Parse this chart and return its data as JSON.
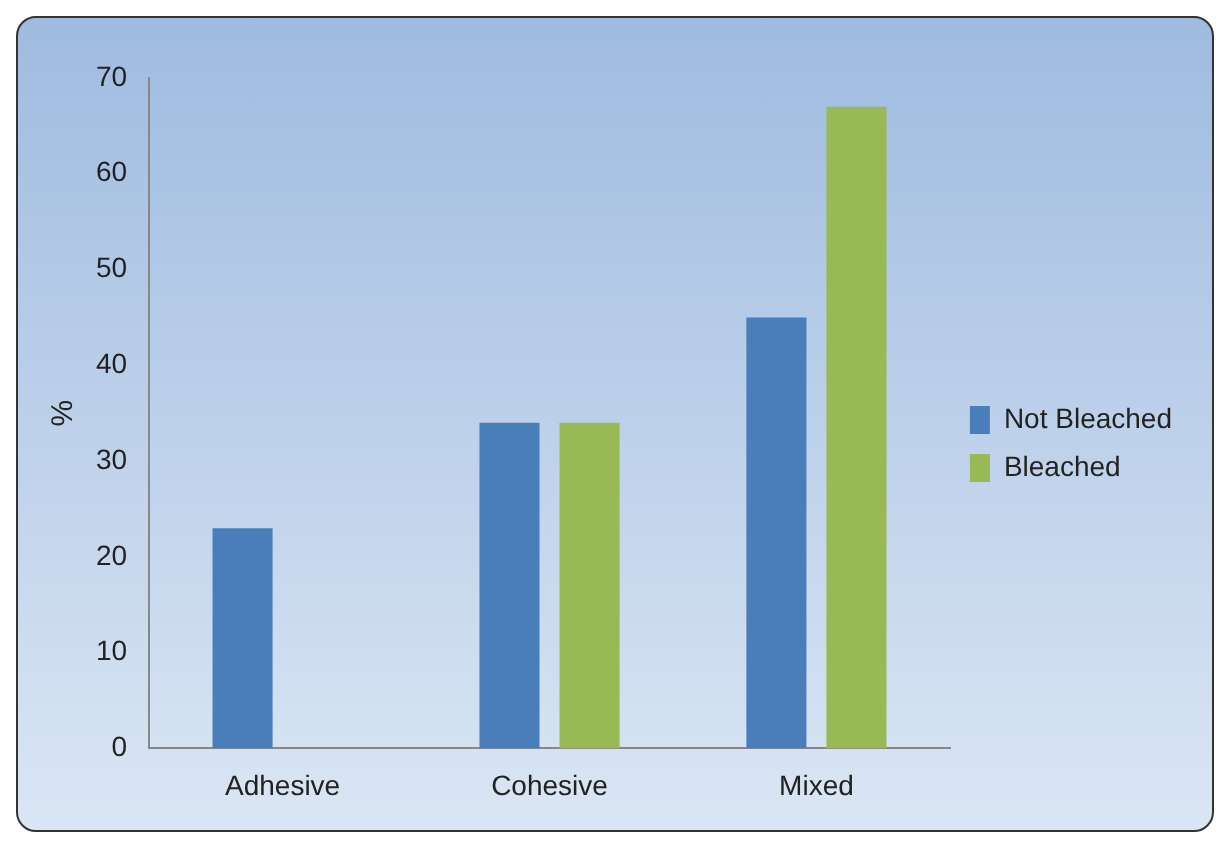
{
  "chart_data": {
    "type": "bar",
    "ylabel": "%",
    "categories": [
      "Adhesive",
      "Cohesive",
      "Mixed"
    ],
    "series": [
      {
        "name": "Not Bleached",
        "color": "#4a7ebb",
        "values": [
          23,
          34,
          45
        ]
      },
      {
        "name": "Bleached",
        "color": "#98b954",
        "values": [
          0,
          34,
          67
        ]
      }
    ],
    "ylim": [
      0,
      70
    ],
    "yticks": [
      0,
      10,
      20,
      30,
      40,
      50,
      60,
      70
    ],
    "legend": "right"
  }
}
